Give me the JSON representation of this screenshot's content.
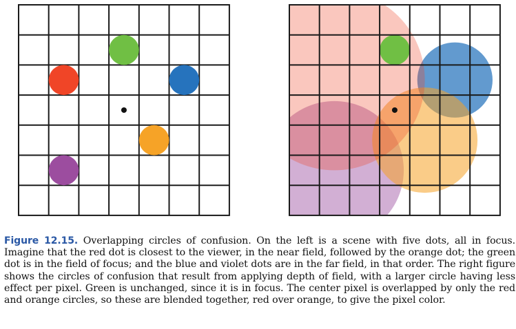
{
  "figure": {
    "label": "Figure 12.15.",
    "caption": "Overlapping circles of confusion. On the left is a scene with five dots, all in focus. Imagine that the red dot is closest to the viewer, in the near field, followed by the orange dot; the green dot is in the field of focus; and the blue and violet dots are in the far field, in that order. The right figure shows the circles of confusion that result from applying depth of field, with a larger circle having less effect per pixel. Green is unchanged, since it is in focus. The center pixel is overlapped by only the red and orange circles, so these are blended together, red over orange, to give the pixel color."
  },
  "colors": {
    "grid": "#1a1a1a",
    "red": "#f04527",
    "orange": "#f6a327",
    "green": "#70bf44",
    "blue": "#2673bd",
    "violet": "#9c4d9f",
    "center_dot": "#111111",
    "caption_label": "#2a58a5"
  },
  "grid": {
    "columns": 7,
    "rows": 7
  },
  "left_scene": {
    "dots": [
      {
        "name": "green",
        "col": 3.5,
        "row": 1.5
      },
      {
        "name": "red",
        "col": 1.5,
        "row": 2.5
      },
      {
        "name": "blue",
        "col": 5.5,
        "row": 2.5
      },
      {
        "name": "orange",
        "col": 4.5,
        "row": 4.5
      },
      {
        "name": "violet",
        "col": 1.5,
        "row": 5.5
      }
    ]
  },
  "right_scene": {
    "circles_back_to_front": [
      {
        "name": "violet",
        "col": 1.5,
        "row": 5.5,
        "radius_cells": 2.3,
        "opacity": 0.45
      },
      {
        "name": "blue",
        "col": 5.5,
        "row": 2.5,
        "radius_cells": 1.25,
        "opacity": 0.72
      },
      {
        "name": "orange",
        "col": 4.5,
        "row": 4.5,
        "radius_cells": 1.75,
        "opacity": 0.55
      },
      {
        "name": "red",
        "col": 1.5,
        "row": 2.5,
        "radius_cells": 3.0,
        "opacity": 0.3
      },
      {
        "name": "green",
        "col": 3.5,
        "row": 1.5,
        "radius_cells": 0.5,
        "opacity": 1.0
      }
    ]
  }
}
